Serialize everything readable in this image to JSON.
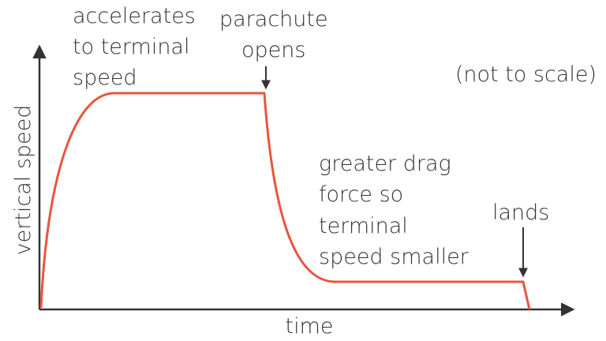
{
  "chart_data": {
    "type": "line",
    "xlabel": "time",
    "ylabel": "vertical speed",
    "note": "(not to scale)",
    "curve_color": "#e8563c",
    "axis_color": "#333333",
    "axis_ticks": "none",
    "grid": false,
    "annotations": [
      {
        "id": "accelerates",
        "lines": [
          "accelerates",
          "to terminal",
          "speed"
        ]
      },
      {
        "id": "parachute",
        "lines": [
          "parachute",
          "opens"
        ]
      },
      {
        "id": "drag",
        "lines": [
          "greater drag",
          "force so",
          "terminal",
          "speed smaller"
        ]
      },
      {
        "id": "lands",
        "lines": [
          "lands"
        ]
      }
    ]
  }
}
